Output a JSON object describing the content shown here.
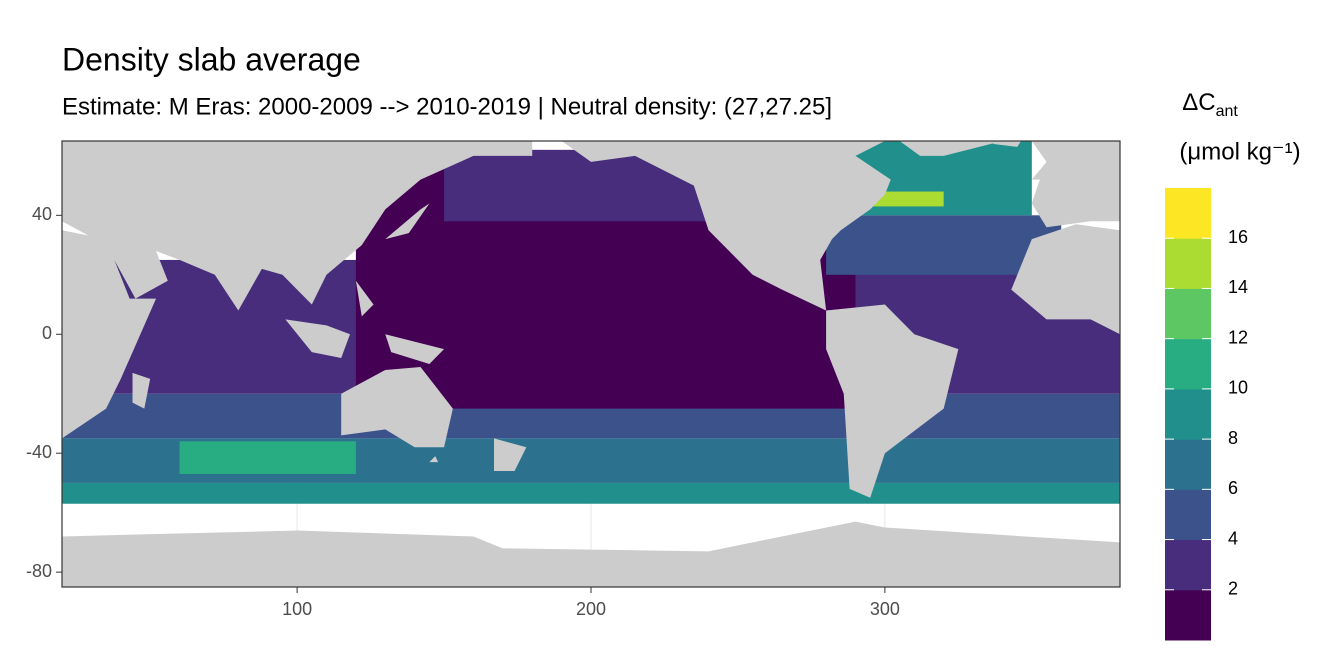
{
  "chart_data": {
    "type": "map",
    "title": "Density slab average",
    "subtitle": "Estimate: M Eras: 2000-2009 --> 2010-2019 | Neutral density: (27,27.25]",
    "xlim": [
      20,
      380
    ],
    "ylim": [
      -85,
      65
    ],
    "xticks": [
      100,
      200,
      300
    ],
    "yticks": [
      -80,
      -40,
      0,
      40
    ],
    "grid": true,
    "legend": {
      "title": "ΔC",
      "title_sub": "ant",
      "unit": "(μmol kg⁻¹)",
      "lim": [
        0,
        18
      ],
      "breaks": [
        2,
        4,
        6,
        8,
        10,
        12,
        14,
        16
      ],
      "colors": [
        "#440154",
        "#472d7b",
        "#3b528b",
        "#2c728e",
        "#21908d",
        "#27ad81",
        "#5dc863",
        "#aadc32",
        "#fde725"
      ]
    },
    "regions": [
      {
        "lon": [
          20,
          380
        ],
        "lat": [
          -57,
          -50
        ],
        "value": 9
      },
      {
        "lon": [
          20,
          380
        ],
        "lat": [
          -50,
          -35
        ],
        "value": 7
      },
      {
        "lon": [
          20,
          380
        ],
        "lat": [
          -35,
          -20
        ],
        "value": 5
      },
      {
        "lon": [
          20,
          380
        ],
        "lat": [
          -20,
          25
        ],
        "value": 3
      },
      {
        "lon": [
          60,
          120
        ],
        "lat": [
          -47,
          -36
        ],
        "value": 11
      },
      {
        "lon": [
          120,
          290
        ],
        "lat": [
          -25,
          62
        ],
        "value": 1
      },
      {
        "lon": [
          150,
          240
        ],
        "lat": [
          38,
          62
        ],
        "value": 3
      },
      {
        "lon": [
          280,
          360
        ],
        "lat": [
          20,
          40
        ],
        "value": 5
      },
      {
        "lon": [
          290,
          350
        ],
        "lat": [
          40,
          65
        ],
        "value": 9
      },
      {
        "lon": [
          295,
          320
        ],
        "lat": [
          43,
          48
        ],
        "value": 15
      }
    ]
  }
}
